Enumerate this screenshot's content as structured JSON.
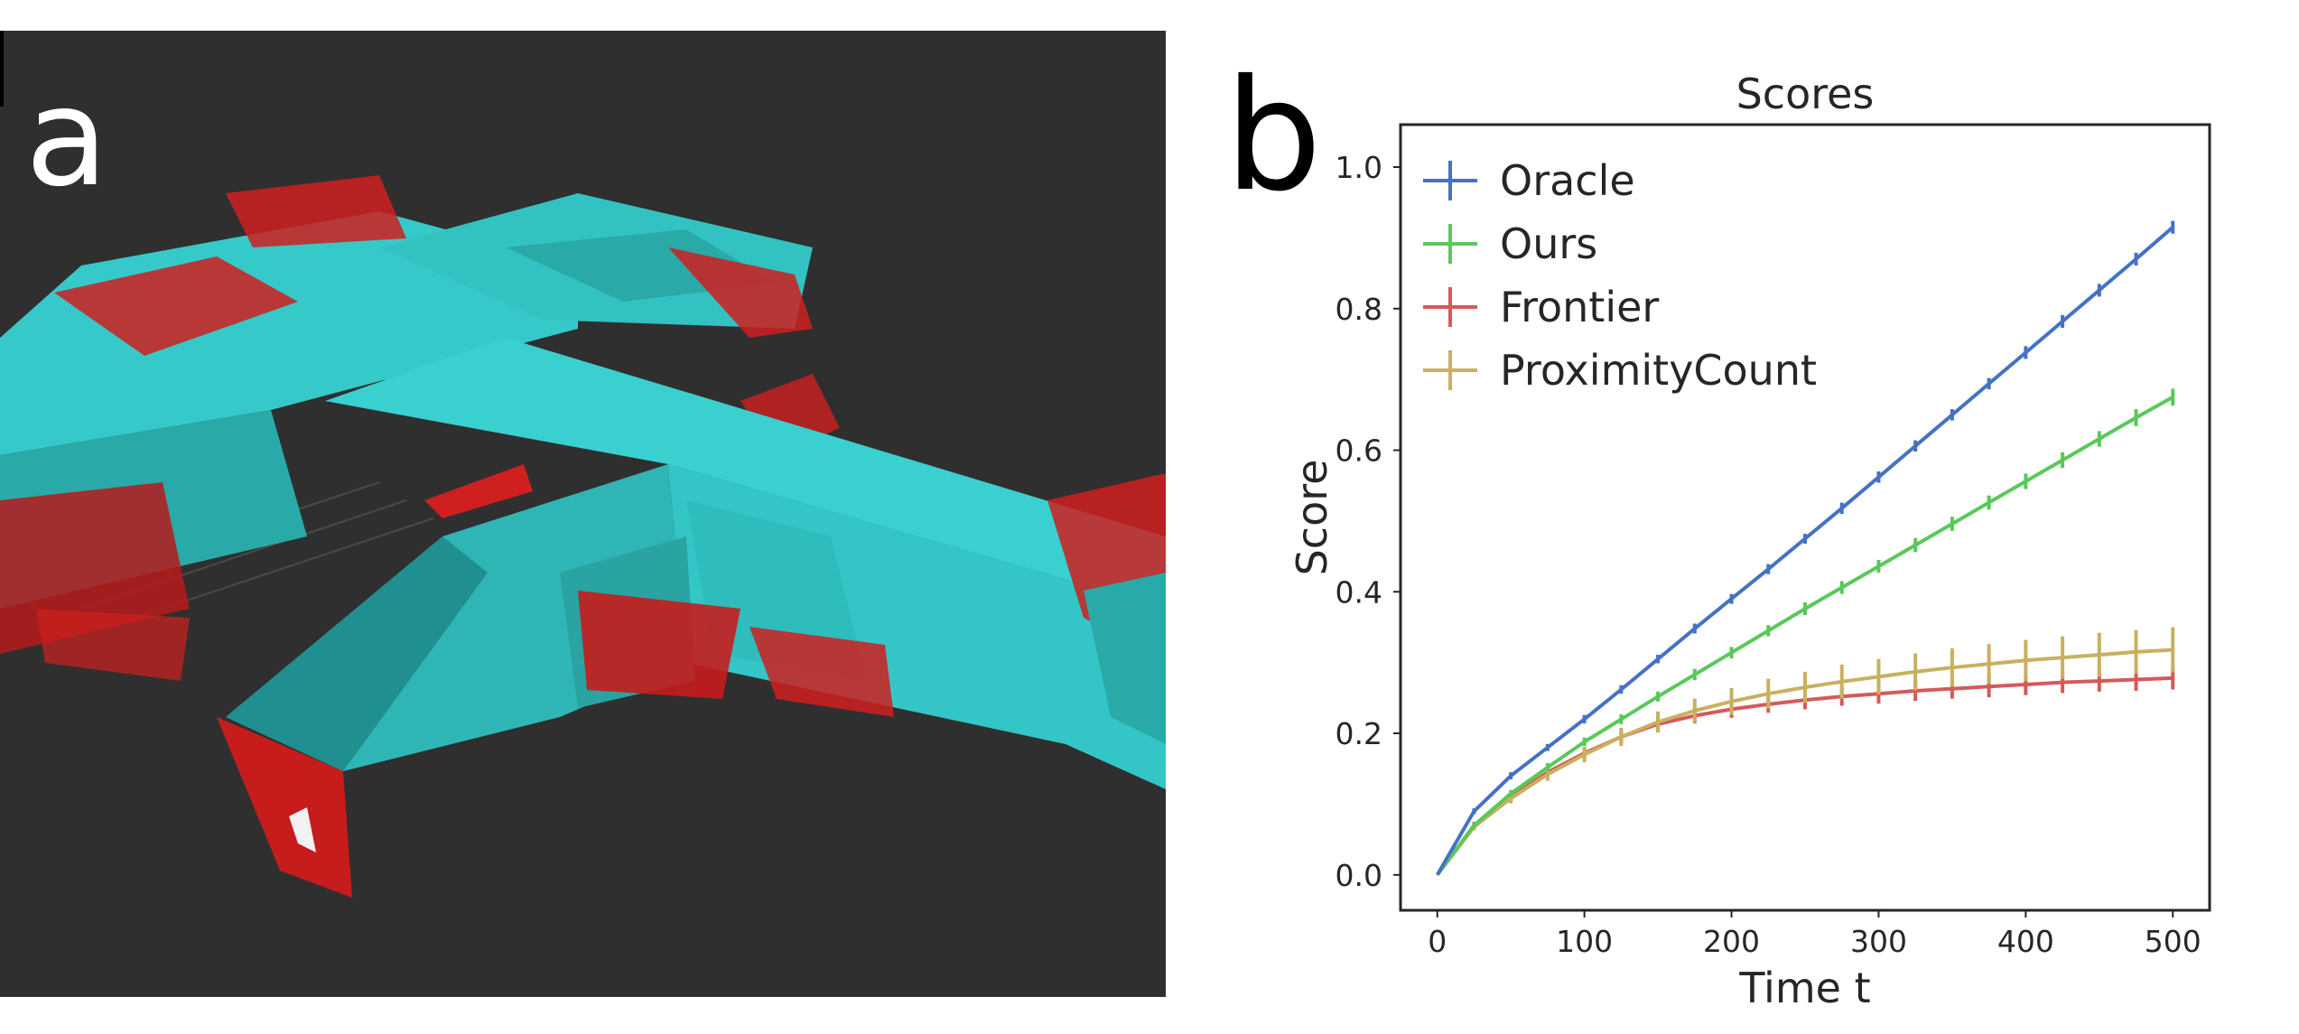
{
  "panels": {
    "a_label": "a",
    "b_label": "b"
  },
  "scene_colors": {
    "background": "#2f2f2f",
    "structure": "#33d6d6",
    "overlay": "#dd1c1c"
  },
  "chart_data": {
    "type": "line",
    "title": "Scores",
    "xlabel": "Time t",
    "ylabel": "Score",
    "xlim": [
      -25,
      525
    ],
    "ylim": [
      -0.05,
      1.06
    ],
    "xticks": [
      0,
      100,
      200,
      300,
      400,
      500
    ],
    "yticks": [
      0.0,
      0.2,
      0.4,
      0.6,
      0.8,
      1.0
    ],
    "xtick_labels": [
      "0",
      "100",
      "200",
      "300",
      "400",
      "500"
    ],
    "ytick_labels": [
      "0.0",
      "0.2",
      "0.4",
      "0.6",
      "0.8",
      "1.0"
    ],
    "grid": false,
    "legend_position": "upper-left",
    "error_bars": true,
    "x": [
      0,
      25,
      50,
      75,
      100,
      125,
      150,
      175,
      200,
      225,
      250,
      275,
      300,
      325,
      350,
      375,
      400,
      425,
      450,
      475,
      500
    ],
    "series": [
      {
        "name": "Oracle",
        "color": "#4472c4",
        "values": [
          0.0,
          0.09,
          0.14,
          0.18,
          0.22,
          0.262,
          0.305,
          0.348,
          0.39,
          0.432,
          0.475,
          0.518,
          0.562,
          0.606,
          0.65,
          0.694,
          0.738,
          0.782,
          0.826,
          0.87,
          0.915
        ],
        "errors": [
          0.0,
          0.004,
          0.005,
          0.005,
          0.006,
          0.006,
          0.006,
          0.007,
          0.007,
          0.007,
          0.007,
          0.008,
          0.008,
          0.008,
          0.008,
          0.008,
          0.009,
          0.009,
          0.009,
          0.009,
          0.009
        ]
      },
      {
        "name": "Ours",
        "color": "#5ac85a",
        "values": [
          0.0,
          0.07,
          0.115,
          0.152,
          0.188,
          0.22,
          0.252,
          0.283,
          0.314,
          0.345,
          0.376,
          0.406,
          0.436,
          0.466,
          0.496,
          0.526,
          0.556,
          0.586,
          0.616,
          0.646,
          0.675
        ],
        "errors": [
          0.0,
          0.004,
          0.005,
          0.006,
          0.006,
          0.007,
          0.007,
          0.008,
          0.008,
          0.008,
          0.009,
          0.009,
          0.009,
          0.01,
          0.01,
          0.01,
          0.011,
          0.011,
          0.011,
          0.012,
          0.012
        ]
      },
      {
        "name": "Frontier",
        "color": "#d45a5a",
        "values": [
          0.0,
          0.07,
          0.11,
          0.145,
          0.172,
          0.195,
          0.213,
          0.225,
          0.234,
          0.241,
          0.247,
          0.252,
          0.256,
          0.26,
          0.263,
          0.266,
          0.269,
          0.272,
          0.274,
          0.276,
          0.278
        ],
        "errors": [
          0.0,
          0.005,
          0.006,
          0.007,
          0.008,
          0.009,
          0.01,
          0.011,
          0.012,
          0.012,
          0.013,
          0.013,
          0.014,
          0.014,
          0.014,
          0.015,
          0.015,
          0.015,
          0.015,
          0.016,
          0.016
        ]
      },
      {
        "name": "ProximityCount",
        "color": "#c8b060",
        "values": [
          0.0,
          0.068,
          0.108,
          0.142,
          0.17,
          0.195,
          0.216,
          0.232,
          0.245,
          0.256,
          0.265,
          0.273,
          0.28,
          0.287,
          0.293,
          0.298,
          0.303,
          0.307,
          0.311,
          0.315,
          0.318
        ],
        "errors": [
          0.0,
          0.005,
          0.007,
          0.009,
          0.011,
          0.013,
          0.015,
          0.017,
          0.019,
          0.021,
          0.022,
          0.024,
          0.025,
          0.026,
          0.027,
          0.028,
          0.029,
          0.03,
          0.031,
          0.031,
          0.032
        ]
      }
    ]
  }
}
